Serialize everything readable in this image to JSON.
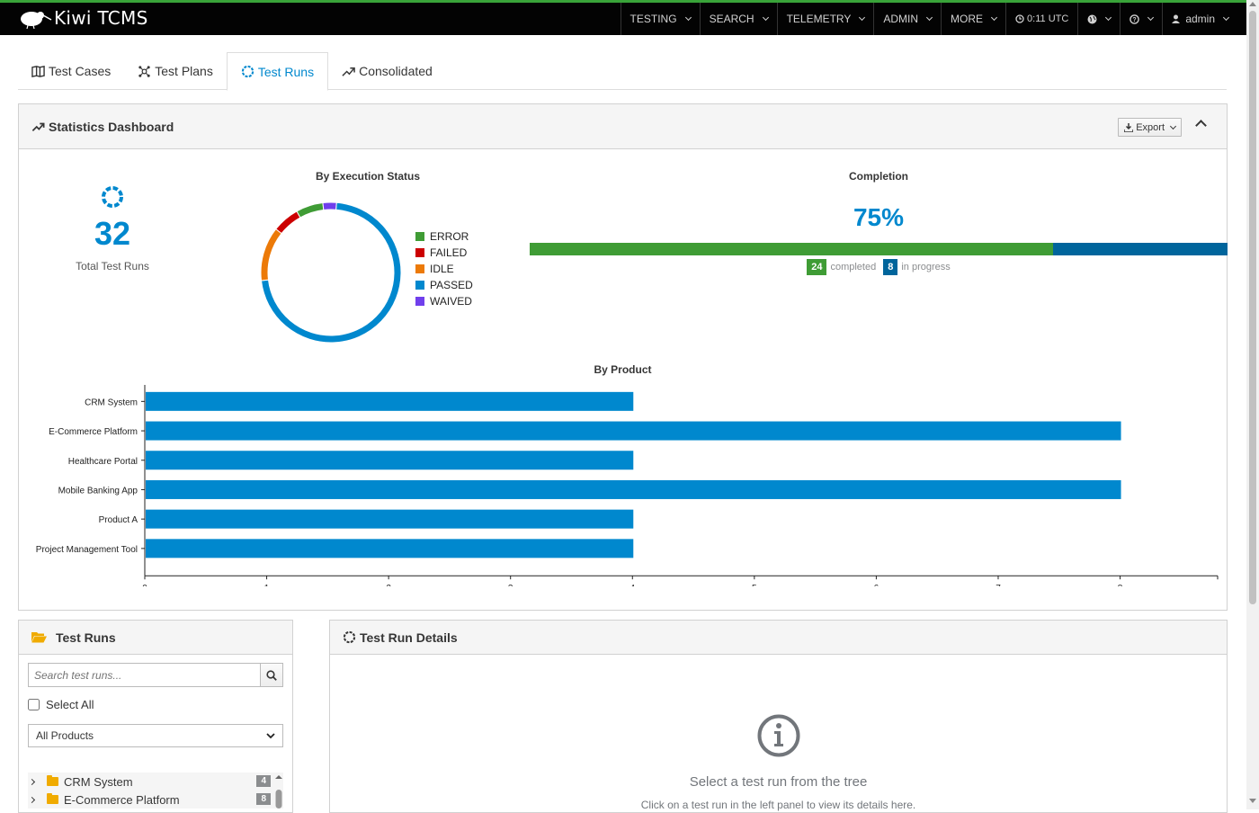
{
  "navbar": {
    "brand": "Kiwi TCMS",
    "items": [
      {
        "label": "TESTING"
      },
      {
        "label": "SEARCH"
      },
      {
        "label": "TELEMETRY"
      },
      {
        "label": "ADMIN"
      },
      {
        "label": "MORE"
      }
    ],
    "clock": "0:11 UTC",
    "user": "admin"
  },
  "tabs": [
    {
      "label": "Test Cases",
      "icon": "book-icon"
    },
    {
      "label": "Test Plans",
      "icon": "network-icon"
    },
    {
      "label": "Test Runs",
      "icon": "spinner-icon",
      "active": true
    },
    {
      "label": "Consolidated",
      "icon": "trend-icon"
    }
  ],
  "dashboard": {
    "title": "Statistics Dashboard",
    "export_label": "Export",
    "total_runs": "32",
    "total_label": "Total Test Runs",
    "status_title": "By Execution Status",
    "completion_title": "Completion",
    "completion_pct": "75%",
    "completed_count": "24",
    "completed_label": "completed",
    "in_progress_count": "8",
    "in_progress_label": "in progress",
    "product_title": "By Product"
  },
  "chart_data": [
    {
      "type": "pie",
      "title": "By Execution Status",
      "categories": [
        "ERROR",
        "FAILED",
        "IDLE",
        "PASSED",
        "WAIVED"
      ],
      "values": [
        2,
        2,
        4,
        23,
        1
      ],
      "colors": [
        "#3f9c35",
        "#cc0000",
        "#ec7a08",
        "#0088ce",
        "#703fec"
      ],
      "legend": "right"
    },
    {
      "type": "bar",
      "orientation": "horizontal",
      "title": "By Product",
      "categories": [
        "CRM System",
        "E-Commerce Platform",
        "Healthcare Portal",
        "Mobile Banking App",
        "Product A",
        "Project Management Tool"
      ],
      "values": [
        4,
        8,
        4,
        8,
        4,
        4
      ],
      "xlim": [
        0,
        8.8
      ],
      "ticks": [
        0,
        1,
        2,
        3,
        4,
        5,
        6,
        7,
        8
      ],
      "color": "#0088ce"
    }
  ],
  "completion": {
    "completed": 24,
    "total": 32
  },
  "runs_panel": {
    "title": "Test Runs",
    "search_placeholder": "Search test runs...",
    "select_all": "Select All",
    "product_filter": "All Products",
    "tree": [
      {
        "label": "CRM System",
        "count": "4"
      },
      {
        "label": "E-Commerce Platform",
        "count": "8"
      }
    ]
  },
  "details_panel": {
    "title": "Test Run Details",
    "empty_title": "Select a test run from the tree",
    "empty_sub": "Click on a test run in the left panel to view its details here."
  },
  "colors": {
    "accent": "#0088ce",
    "navbar_bg": "#030303",
    "success": "#3f9c35",
    "in_progress": "#00659c"
  }
}
